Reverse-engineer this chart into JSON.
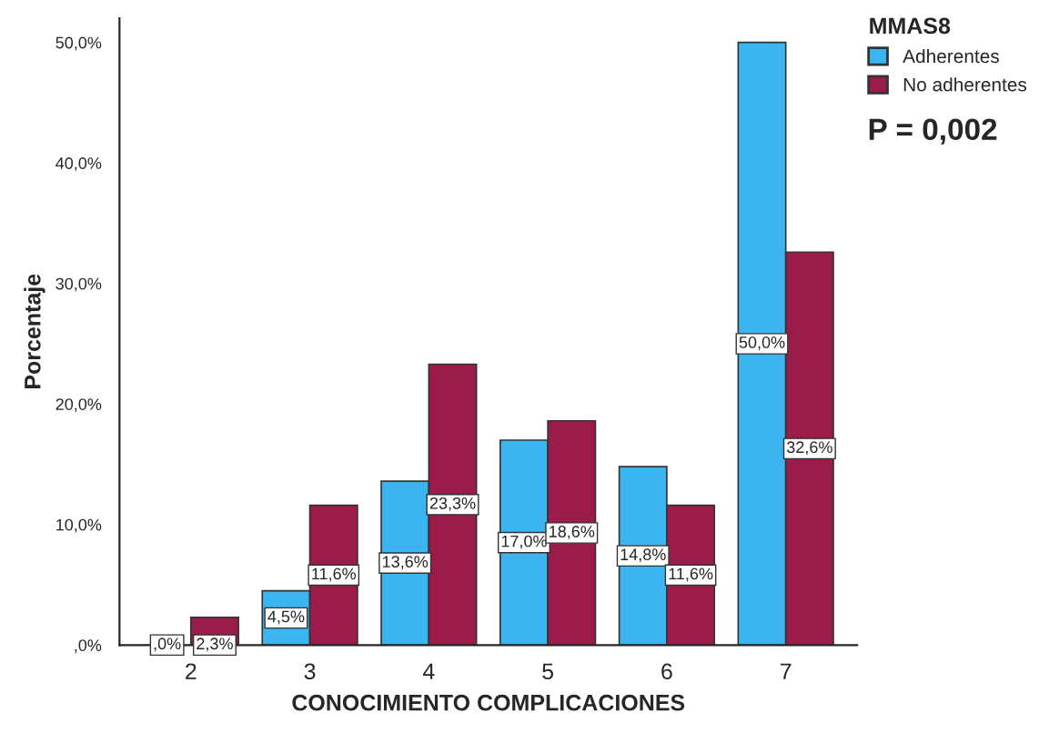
{
  "chart_data": {
    "type": "bar",
    "xlabel": "CONOCIMIENTO COMPLICACIONES",
    "ylabel": "Porcentaje",
    "legend_title": "MMAS8",
    "legend": "top right",
    "categories": [
      "2",
      "3",
      "4",
      "5",
      "6",
      "7"
    ],
    "series": [
      {
        "name": "Adherentes",
        "color": "#3cb4f0",
        "values": [
          0,
          4.5,
          13.6,
          17.0,
          14.8,
          50.0
        ],
        "value_labels": [
          ",0%",
          "4,5%",
          "13,6%",
          "17,0%",
          "14,8%",
          "50,0%"
        ]
      },
      {
        "name": "No adherentes",
        "color": "#9b1c4b",
        "values": [
          2.3,
          11.6,
          23.3,
          18.6,
          11.6,
          32.6
        ],
        "value_labels": [
          "2,3%",
          "11,6%",
          "23,3%",
          "18,6%",
          "11,6%",
          "32,6%"
        ]
      }
    ],
    "ylim": [
      0,
      52
    ],
    "yticks": [
      {
        "value": 0,
        "label": ",0%"
      },
      {
        "value": 10,
        "label": "10,0%"
      },
      {
        "value": 20,
        "label": "20,0%"
      },
      {
        "value": 30,
        "label": "30,0%"
      },
      {
        "value": 40,
        "label": "40,0%"
      },
      {
        "value": 50,
        "label": "50,0%"
      }
    ],
    "grid": false,
    "annotations": [
      "P = 0,002"
    ]
  }
}
